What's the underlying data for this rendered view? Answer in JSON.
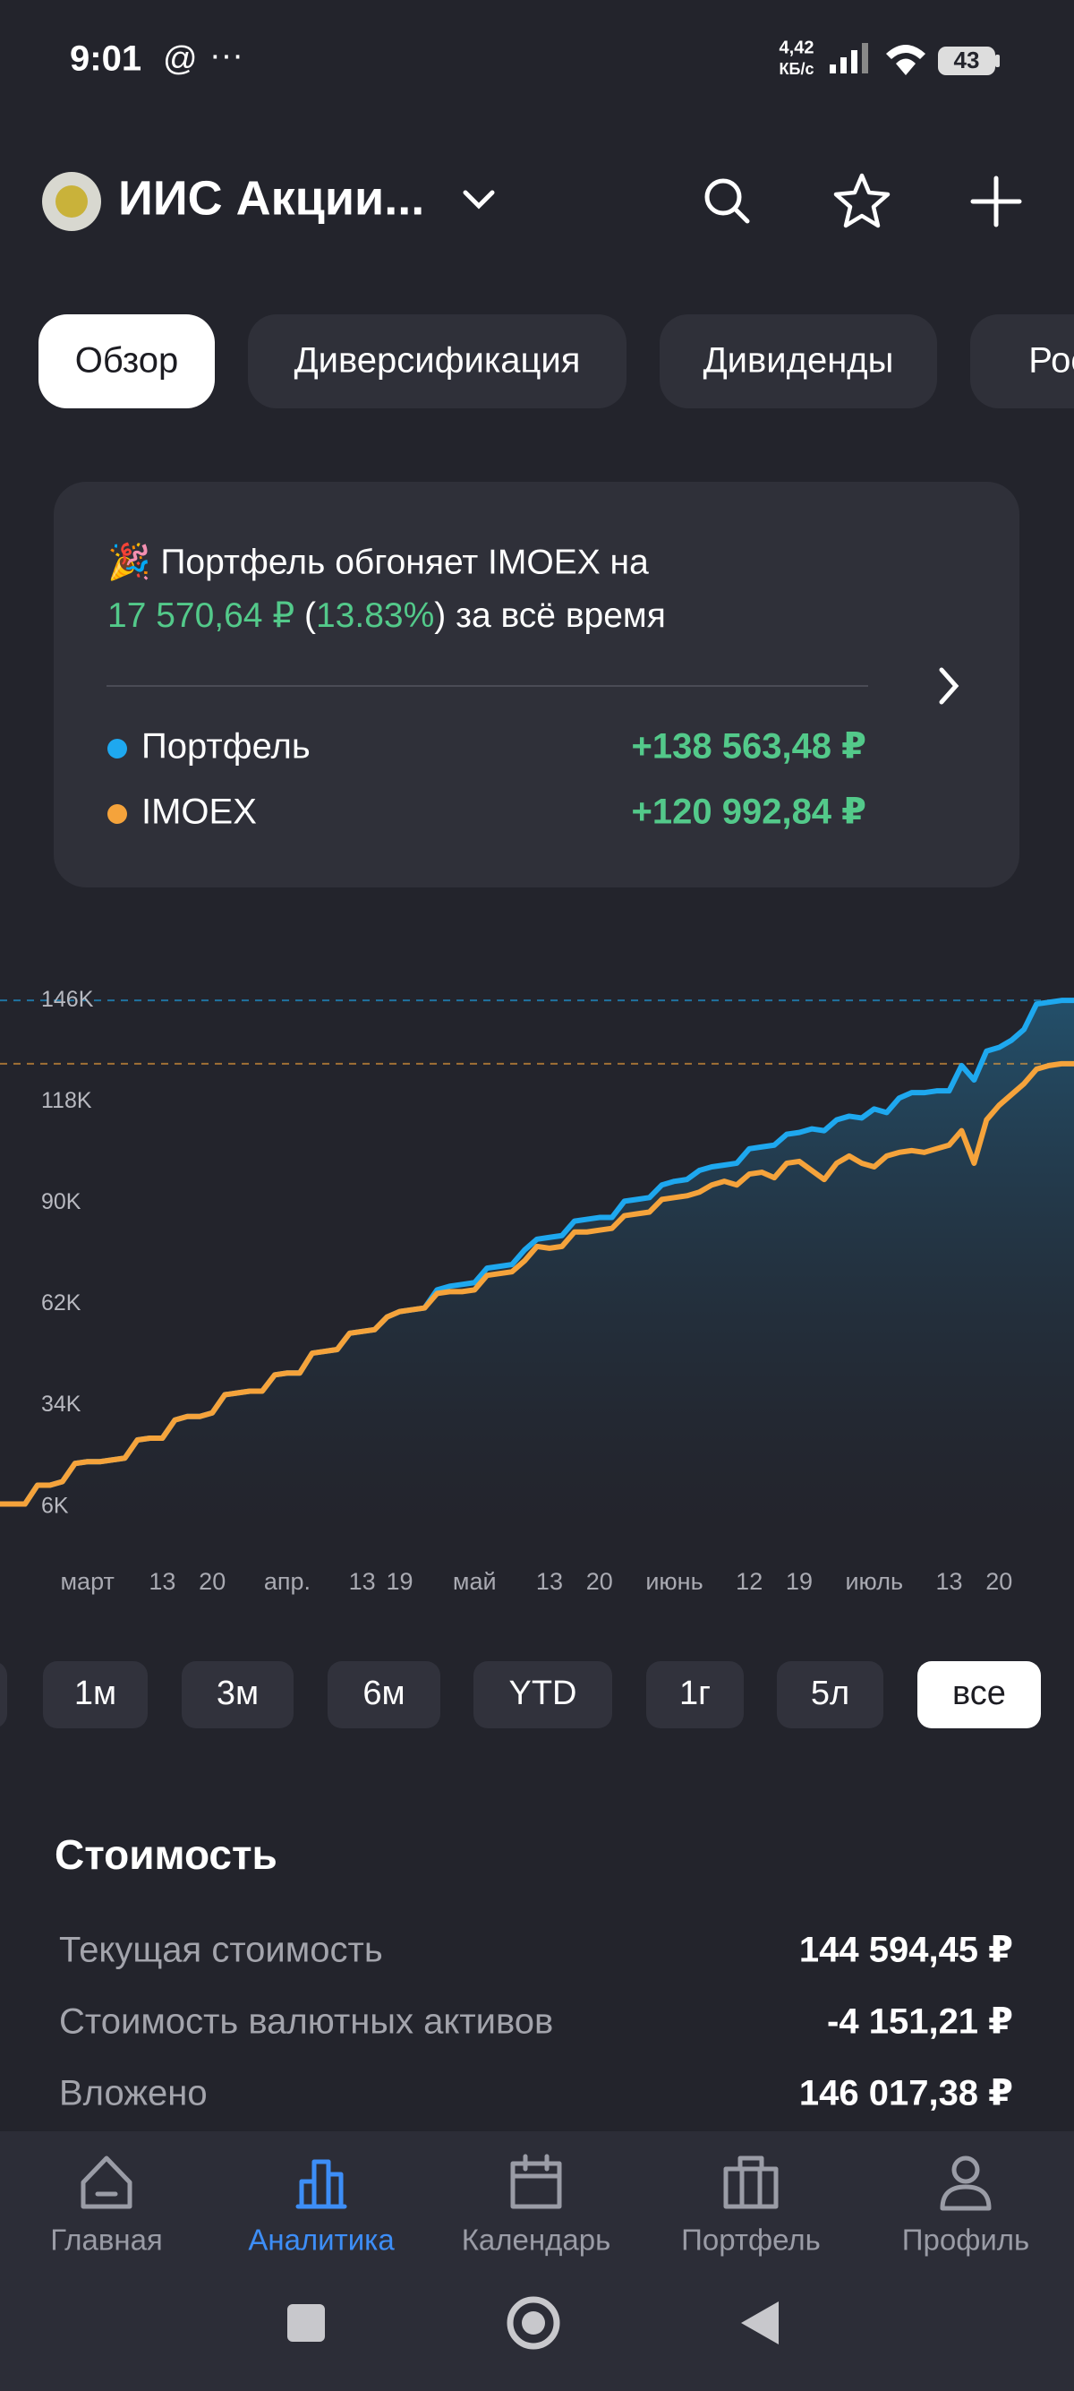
{
  "status": {
    "time": "9:01",
    "at": "@",
    "more": "···",
    "speed": "4,42",
    "speed_unit": "КБ/с",
    "battery": "43"
  },
  "header": {
    "account": "ИИС Акции..."
  },
  "tabs": [
    "Обзор",
    "Диверсификация",
    "Дивиденды",
    "Рост"
  ],
  "summary": {
    "line1": "🎉 Портфель обгоняет IMOEX на",
    "amount": "17 570,64 ₽",
    "open": " (",
    "percent": "13.83%",
    "close": ")",
    "suffix": " за всё время",
    "totals": [
      "+138 563,48 ₽",
      "+120 992,84 ₽"
    ]
  },
  "chart_data": {
    "type": "line",
    "categories": [
      null,
      null,
      null,
      null,
      null,
      null,
      null,
      "март",
      null,
      null,
      null,
      null,
      null,
      "13",
      null,
      null,
      null,
      "20",
      null,
      null,
      null,
      null,
      null,
      "апр.",
      null,
      null,
      null,
      null,
      null,
      "13",
      null,
      null,
      "19",
      null,
      null,
      null,
      null,
      null,
      "май",
      null,
      null,
      null,
      null,
      null,
      "13",
      null,
      null,
      null,
      "20",
      null,
      null,
      null,
      null,
      null,
      "июнь",
      null,
      null,
      null,
      null,
      null,
      "12",
      null,
      null,
      null,
      "19",
      null,
      null,
      null,
      null,
      null,
      "июль",
      null,
      null,
      null,
      null,
      null,
      "13",
      null,
      null,
      null,
      "20",
      null,
      null,
      null,
      null,
      null,
      null
    ],
    "series": [
      {
        "name": "Портфель",
        "color": "#1ea8ef",
        "values": [
          6800,
          6800,
          6800,
          12000,
          12000,
          13000,
          18000,
          18500,
          18500,
          19000,
          19500,
          24500,
          25000,
          25000,
          30000,
          31000,
          31000,
          32000,
          37000,
          37500,
          38000,
          38000,
          42500,
          43000,
          43000,
          48500,
          49000,
          49500,
          54000,
          54500,
          55000,
          58500,
          60000,
          60500,
          61000,
          66000,
          67000,
          67500,
          68000,
          72000,
          72500,
          73000,
          77000,
          80000,
          80500,
          81000,
          85000,
          85500,
          86000,
          86000,
          90500,
          91000,
          91500,
          95000,
          96000,
          96500,
          99000,
          100000,
          100500,
          101000,
          105000,
          105500,
          106000,
          109000,
          109500,
          110500,
          110000,
          113000,
          114000,
          113500,
          116000,
          115000,
          119000,
          120500,
          120500,
          121000,
          121000,
          128000,
          124000,
          132000,
          133000,
          135000,
          138000,
          145000,
          145500,
          146000,
          146000
        ]
      },
      {
        "name": "IMOEX",
        "color": "#f5a33b",
        "values": [
          6800,
          6800,
          6800,
          12000,
          12000,
          13000,
          18000,
          18500,
          18500,
          19000,
          19500,
          24500,
          25000,
          25000,
          30000,
          31000,
          31000,
          32000,
          37000,
          37500,
          38000,
          38000,
          42500,
          43000,
          43000,
          48500,
          49000,
          49500,
          54000,
          54500,
          55000,
          58500,
          60000,
          60500,
          61000,
          65000,
          65500,
          65500,
          66000,
          70000,
          70500,
          71000,
          74000,
          78000,
          77500,
          78000,
          82000,
          82000,
          82500,
          83000,
          86500,
          87000,
          87500,
          91000,
          91500,
          92000,
          93000,
          95000,
          96000,
          95000,
          98000,
          98500,
          97000,
          101000,
          101500,
          99000,
          96500,
          101000,
          103000,
          101000,
          100000,
          103000,
          104000,
          104500,
          104000,
          105000,
          106000,
          110000,
          101000,
          113000,
          117000,
          120000,
          123000,
          127000,
          128000,
          128500,
          128500
        ]
      }
    ],
    "ylim": [
      0,
      150000
    ],
    "yticks": [
      {
        "value": 6000,
        "label": "6K"
      },
      {
        "value": 34000,
        "label": "34K"
      },
      {
        "value": 62000,
        "label": "62K"
      },
      {
        "value": 90000,
        "label": "90K"
      },
      {
        "value": 118000,
        "label": "118K"
      },
      {
        "value": 146000,
        "label": "146K"
      }
    ],
    "grid": false
  },
  "periods": {
    "items": [
      "1м",
      "3м",
      "6м",
      "YTD",
      "1г",
      "5л",
      "все"
    ],
    "selected": 6
  },
  "value_section": {
    "title": "Стоимость",
    "rows": [
      [
        "Текущая стоимость",
        "144 594,45 ₽"
      ],
      [
        "Стоимость валютных активов",
        "-4 151,21 ₽"
      ],
      [
        "Вложено",
        "146 017,38 ₽"
      ]
    ]
  },
  "nav": {
    "items": [
      "Главная",
      "Аналитика",
      "Календарь",
      "Портфель",
      "Профиль"
    ],
    "active": 1
  }
}
